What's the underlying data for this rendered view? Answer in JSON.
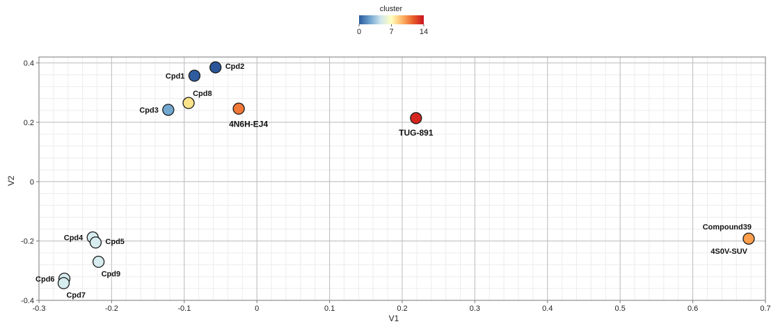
{
  "chart_data": {
    "type": "scatter",
    "xlabel": "V1",
    "ylabel": "V2",
    "xlim": [
      -0.3,
      0.7
    ],
    "ylim": [
      -0.4,
      0.42
    ],
    "x_ticks": [
      "-0.3",
      "-0.2",
      "-0.1",
      "0",
      "0.1",
      "0.2",
      "0.3",
      "0.4",
      "0.5",
      "0.6",
      "0.7"
    ],
    "y_ticks": [
      "-0.4",
      "-0.2",
      "0",
      "0.2",
      "0.4"
    ],
    "grid": true,
    "legend": {
      "title": "cluster",
      "type": "colorbar",
      "placement": "top-center",
      "min": 0,
      "max": 14,
      "ticks": [
        "0",
        "7",
        "14"
      ],
      "colors": [
        "#2b5a9c",
        "#6fa3cf",
        "#cfe6ee",
        "#ffffbf",
        "#fdb466",
        "#e8602c",
        "#c8141e"
      ]
    },
    "points": [
      {
        "label": "Cpd1",
        "x": -0.086,
        "y": 0.357,
        "color": "#2f5c9f",
        "label_pos": "left"
      },
      {
        "label": "Cpd2",
        "x": -0.057,
        "y": 0.385,
        "color": "#2a5598",
        "label_pos": "right"
      },
      {
        "label": "Cpd8",
        "x": -0.094,
        "y": 0.265,
        "color": "#fbe389",
        "label_pos": "above-right"
      },
      {
        "label": "Cpd3",
        "x": -0.122,
        "y": 0.242,
        "color": "#72a7d0",
        "label_pos": "left"
      },
      {
        "label": "4N6H-EJ4",
        "x": -0.025,
        "y": 0.246,
        "color": "#f07838",
        "label_pos": "below"
      },
      {
        "label": "TUG-891",
        "x": 0.219,
        "y": 0.214,
        "color": "#d3251e",
        "label_pos": "below"
      },
      {
        "label": "Cpd4",
        "x": -0.226,
        "y": -0.188,
        "color": "#d6ecef",
        "label_pos": "left"
      },
      {
        "label": "Cpd5",
        "x": -0.222,
        "y": -0.205,
        "color": "#d6ecef",
        "label_pos": "right"
      },
      {
        "label": "Cpd9",
        "x": -0.218,
        "y": -0.27,
        "color": "#d6ecef",
        "label_pos": "below-right"
      },
      {
        "label": "Cpd6",
        "x": -0.265,
        "y": -0.327,
        "color": "#d6ecef",
        "label_pos": "left"
      },
      {
        "label": "Cpd7",
        "x": -0.266,
        "y": -0.342,
        "color": "#d6ecef",
        "label_pos": "below-right"
      },
      {
        "label": "Compound39",
        "x": 0.677,
        "y": -0.192,
        "color": "#fb9f4c",
        "label_pos": "above-left"
      },
      {
        "label": "4S0V-SUV",
        "x": 0.677,
        "y": -0.192,
        "color": "#fb9f4c",
        "label_pos": "below-left",
        "hide_marker": true
      }
    ]
  }
}
